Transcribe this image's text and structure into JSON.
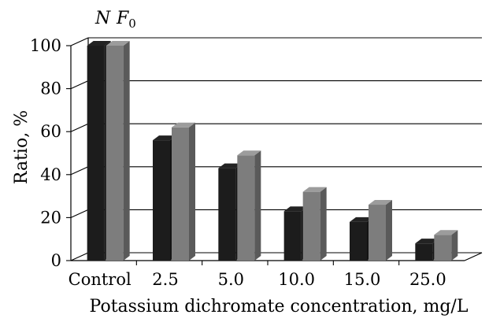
{
  "chart_data": {
    "type": "bar",
    "categories": [
      "Control",
      "2.5",
      "5.0",
      "10.0",
      "15.0",
      "25.0"
    ],
    "series": [
      {
        "name": "N",
        "color": "#1c1c1c",
        "values": [
          100,
          56,
          43,
          23,
          18,
          8
        ]
      },
      {
        "name": "F",
        "name_sub": "0",
        "color": "#7d7d7d",
        "values": [
          100,
          62,
          49,
          32,
          26,
          12
        ]
      }
    ],
    "y_ticks": [
      "0",
      "20",
      "40",
      "60",
      "80",
      "100"
    ],
    "ylim": [
      0,
      100
    ],
    "xlabel": "Potassium dichromate concentration, mg/L",
    "ylabel": "Ratio, %",
    "grid": true,
    "legend_position": "top-left"
  }
}
